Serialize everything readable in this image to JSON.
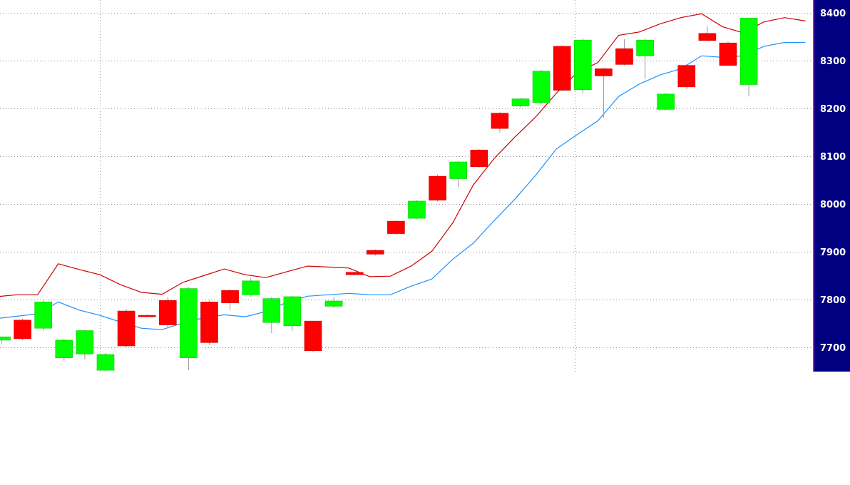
{
  "chart_data": {
    "type": "candlestick",
    "title": "",
    "xlabel": "",
    "ylabel": "",
    "y_axis_side": "right",
    "ylim": [
      7650,
      8400
    ],
    "yticks": [
      7700,
      7800,
      7900,
      8000,
      8100,
      8200,
      8300,
      8400
    ],
    "ytick_labels": [
      "7700",
      "7800",
      "7900",
      "8000",
      "8100",
      "8200",
      "8300",
      "8400"
    ],
    "grid": true,
    "colors": {
      "up": "#00ff00",
      "down": "#ff0000",
      "upper_band": "#cc0000",
      "mid_band": "#1e90ff",
      "axis_panel": "#000080",
      "axis_border": "#cc00cc",
      "grid": "#909090"
    },
    "candles": [
      {
        "open": 7715,
        "high": 7722,
        "low": 7708,
        "close": 7722
      },
      {
        "open": 7757,
        "high": 7760,
        "low": 7715,
        "close": 7718
      },
      {
        "open": 7740,
        "high": 7800,
        "low": 7735,
        "close": 7795
      },
      {
        "open": 7678,
        "high": 7718,
        "low": 7672,
        "close": 7715
      },
      {
        "open": 7686,
        "high": 7737,
        "low": 7675,
        "close": 7735
      },
      {
        "open": 7652,
        "high": 7688,
        "low": 7650,
        "close": 7685
      },
      {
        "open": 7776,
        "high": 7780,
        "low": 7700,
        "close": 7703
      },
      {
        "open": 7767,
        "high": 7769,
        "low": 7764,
        "close": 7765
      },
      {
        "open": 7798,
        "high": 7805,
        "low": 7740,
        "close": 7747
      },
      {
        "open": 7678,
        "high": 7826,
        "low": 7652,
        "close": 7823
      },
      {
        "open": 7795,
        "high": 7798,
        "low": 7705,
        "close": 7710
      },
      {
        "open": 7819,
        "high": 7822,
        "low": 7778,
        "close": 7793
      },
      {
        "open": 7810,
        "high": 7845,
        "low": 7805,
        "close": 7839
      },
      {
        "open": 7752,
        "high": 7805,
        "low": 7730,
        "close": 7802
      },
      {
        "open": 7745,
        "high": 7808,
        "low": 7735,
        "close": 7806
      },
      {
        "open": 7755,
        "high": 7755,
        "low": 7690,
        "close": 7693
      },
      {
        "open": 7786,
        "high": 7805,
        "low": 7782,
        "close": 7797
      },
      {
        "open": 7857,
        "high": 7858,
        "low": 7851,
        "close": 7852
      },
      {
        "open": 7903,
        "high": 7905,
        "low": 7892,
        "close": 7895
      },
      {
        "open": 7964,
        "high": 7966,
        "low": 7935,
        "close": 7938
      },
      {
        "open": 7970,
        "high": 8008,
        "low": 7968,
        "close": 8006
      },
      {
        "open": 8058,
        "high": 8062,
        "low": 8005,
        "close": 8008
      },
      {
        "open": 8053,
        "high": 8090,
        "low": 8035,
        "close": 8088
      },
      {
        "open": 8113,
        "high": 8115,
        "low": 8075,
        "close": 8078
      },
      {
        "open": 8190,
        "high": 8192,
        "low": 8150,
        "close": 8158
      },
      {
        "open": 8205,
        "high": 8222,
        "low": 8202,
        "close": 8220
      },
      {
        "open": 8212,
        "high": 8280,
        "low": 8210,
        "close": 8278
      },
      {
        "open": 8330,
        "high": 8332,
        "low": 8236,
        "close": 8238
      },
      {
        "open": 8239,
        "high": 8346,
        "low": 8232,
        "close": 8343
      },
      {
        "open": 8283,
        "high": 8285,
        "low": 8180,
        "close": 8268
      },
      {
        "open": 8325,
        "high": 8345,
        "low": 8290,
        "close": 8292
      },
      {
        "open": 8310,
        "high": 8346,
        "low": 8262,
        "close": 8343
      },
      {
        "open": 8198,
        "high": 8232,
        "low": 8196,
        "close": 8230
      },
      {
        "open": 8290,
        "high": 8292,
        "low": 8240,
        "close": 8245
      },
      {
        "open": 8357,
        "high": 8372,
        "low": 8340,
        "close": 8342
      },
      {
        "open": 8337,
        "high": 8340,
        "low": 8288,
        "close": 8290
      },
      {
        "open": 8250,
        "high": 8389,
        "low": 8225,
        "close": 8389
      }
    ],
    "series": [
      {
        "role": "upper-band",
        "color": "#cc0000",
        "values": [
          7806,
          7810,
          7810,
          7875,
          7863,
          7852,
          7831,
          7815,
          7811,
          7836,
          7850,
          7864,
          7852,
          7846,
          7858,
          7870,
          7868,
          7866,
          7848,
          7849,
          7870,
          7901,
          7960,
          8040,
          8095,
          8140,
          8182,
          8232,
          8275,
          8296,
          8353,
          8360,
          8377,
          8390,
          8398,
          8371,
          8358,
          8381,
          8390,
          8383
        ]
      },
      {
        "role": "middle-band",
        "color": "#1e90ff",
        "values": [
          7760,
          7765,
          7770,
          7795,
          7778,
          7767,
          7753,
          7740,
          7737,
          7751,
          7762,
          7768,
          7764,
          7775,
          7794,
          7807,
          7810,
          7813,
          7810,
          7810,
          7828,
          7843,
          7884,
          7918,
          7965,
          8010,
          8060,
          8115,
          8145,
          8174,
          8225,
          8251,
          8270,
          8283,
          8310,
          8307,
          8310,
          8330,
          8338,
          8338
        ]
      }
    ]
  }
}
